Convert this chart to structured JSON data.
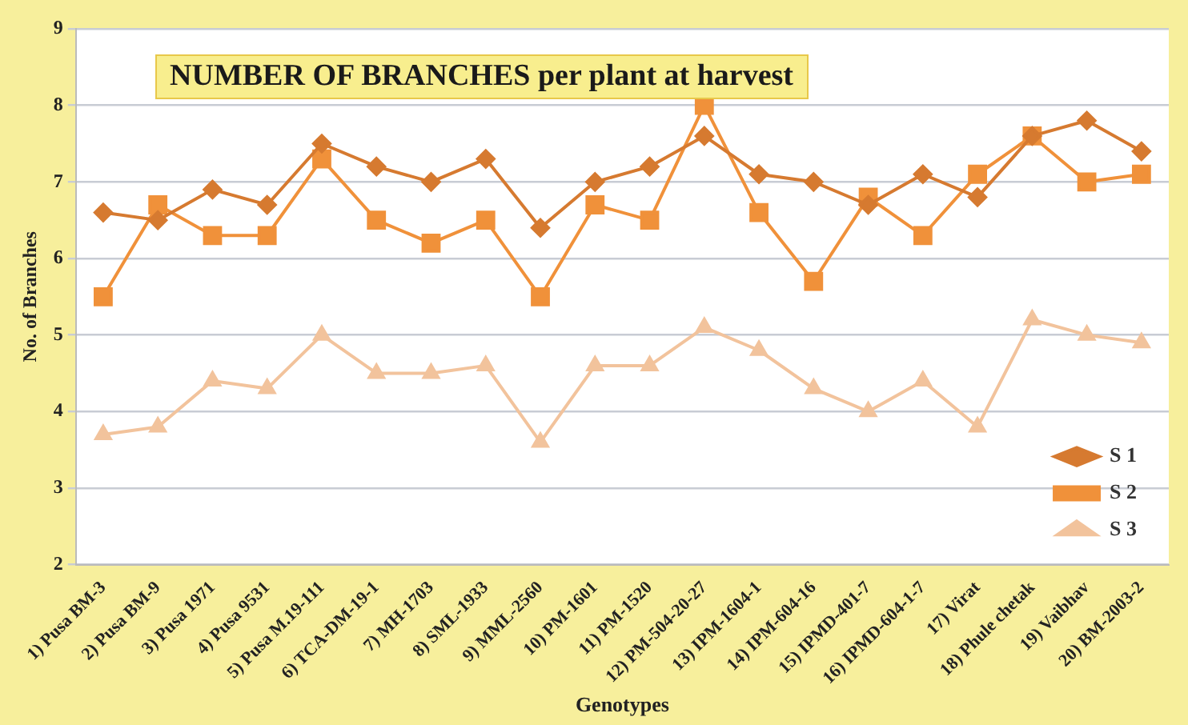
{
  "chart_data": {
    "type": "line",
    "title": "NUMBER OF BRANCHES per plant at harvest",
    "xlabel": "Genotypes",
    "ylabel": "No. of Branches",
    "categories": [
      "1) Pusa BM-3",
      "2) Pusa BM-9",
      "3) Pusa 1971",
      "4) Pusa 9531",
      "5) Pusa M.19-111",
      "6) TCA-DM-19-1",
      "7) MH-1703",
      "8) SML-1933",
      "9) MML-2560",
      "10) PM-1601",
      "11) PM-1520",
      "12) PM-504-20-27",
      "13) IPM-1604-1",
      "14) IPM-604-16",
      "15) IPMD-401-7",
      "16) IPMD-604-1-7",
      "17) Virat",
      "18) Phule chetak",
      "19) Vaibhav",
      "20) BM-2003-2"
    ],
    "series": [
      {
        "name": "S 1",
        "color": "#d67a30",
        "marker": "diamond",
        "values": [
          6.6,
          6.5,
          6.9,
          6.7,
          7.5,
          7.2,
          7.0,
          7.3,
          6.4,
          7.0,
          7.2,
          7.6,
          7.1,
          7.0,
          6.7,
          7.1,
          6.8,
          7.6,
          7.8,
          7.4
        ]
      },
      {
        "name": "S 2",
        "color": "#f0913a",
        "marker": "square",
        "values": [
          5.5,
          6.7,
          6.3,
          6.3,
          7.3,
          6.5,
          6.2,
          6.5,
          5.5,
          6.7,
          6.5,
          8.0,
          6.6,
          5.7,
          6.8,
          6.3,
          7.1,
          7.6,
          7.0,
          7.1
        ]
      },
      {
        "name": "S 3",
        "color": "#f2c39c",
        "marker": "triangle",
        "values": [
          3.7,
          3.8,
          4.4,
          4.3,
          5.0,
          4.5,
          4.5,
          4.6,
          3.6,
          4.6,
          4.6,
          5.1,
          4.8,
          4.3,
          4.0,
          4.4,
          3.8,
          5.2,
          5.0,
          4.9
        ]
      }
    ],
    "ylim": [
      2,
      9
    ],
    "yticks": [
      2,
      3,
      4,
      5,
      6,
      7,
      8,
      9
    ],
    "grid": "y",
    "legend": "bottom right",
    "line_style": "solid"
  }
}
